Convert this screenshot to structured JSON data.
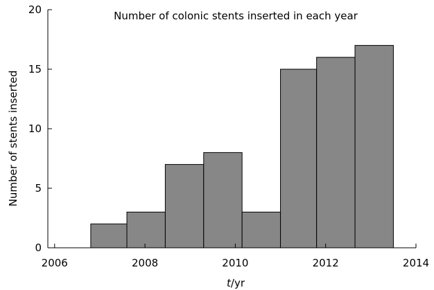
{
  "chart_data": {
    "type": "bar",
    "title": "Number of colonic stents inserted in each year",
    "ylabel": "Number of stents inserted",
    "xlabel_italic": "t",
    "xlabel_rest": "/yr",
    "x_ticks": [
      2006,
      2008,
      2010,
      2012,
      2014
    ],
    "y_ticks": [
      0,
      5,
      10,
      15,
      20
    ],
    "xlim": [
      2005.85,
      2014
    ],
    "ylim": [
      0,
      20
    ],
    "bar_color": "#878787",
    "edge_color": "#000000",
    "grid": false,
    "bars": [
      {
        "x_start": 2006.8,
        "x_end": 2007.6,
        "value": 2
      },
      {
        "x_start": 2007.6,
        "x_end": 2008.45,
        "value": 3
      },
      {
        "x_start": 2008.45,
        "x_end": 2009.3,
        "value": 7
      },
      {
        "x_start": 2009.3,
        "x_end": 2010.15,
        "value": 8
      },
      {
        "x_start": 2010.15,
        "x_end": 2011.0,
        "value": 3
      },
      {
        "x_start": 2011.0,
        "x_end": 2011.8,
        "value": 15
      },
      {
        "x_start": 2011.8,
        "x_end": 2012.65,
        "value": 16
      },
      {
        "x_start": 2012.65,
        "x_end": 2013.5,
        "value": 17
      }
    ]
  }
}
